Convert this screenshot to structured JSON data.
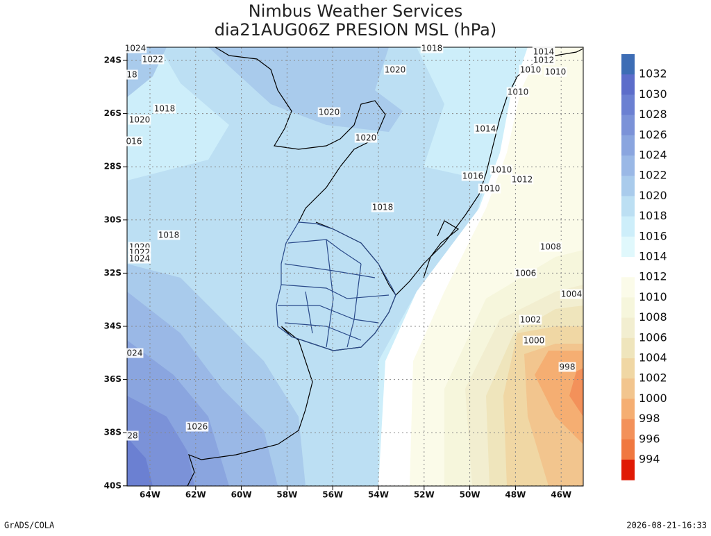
{
  "title": "Nimbus Weather Services",
  "subtitle": "dia21AUG06Z PRESION MSL (hPa)",
  "lat_labels": [
    "24S",
    "26S",
    "28S",
    "30S",
    "32S",
    "34S",
    "36S",
    "38S",
    "40S"
  ],
  "lon_labels": [
    "64W",
    "62W",
    "60W",
    "58W",
    "56W",
    "54W",
    "52W",
    "50W",
    "48W",
    "46W"
  ],
  "colorbar": {
    "labels": [
      "1032",
      "1030",
      "1028",
      "1026",
      "1024",
      "1022",
      "1020",
      "1018",
      "1016",
      "1014",
      "1012",
      "1010",
      "1008",
      "1006",
      "1004",
      "1002",
      "1000",
      "998",
      "996",
      "994"
    ],
    "colors": [
      "#3d6db5",
      "#5c6dca",
      "#6b80d2",
      "#7b92d8",
      "#8aa5df",
      "#9ab8e6",
      "#a9cbec",
      "#bcdff3",
      "#cdeefa",
      "#e0f8fc",
      "#ffffff",
      "#fbfbe9",
      "#f6f6dc",
      "#f2eed0",
      "#efe5bc",
      "#f0d7a4",
      "#f2c58e",
      "#f5ae72",
      "#f3915a",
      "#f07840",
      "#e01a05"
    ]
  },
  "contour_labels": [
    "1024",
    "1022",
    "18",
    "1018",
    "1020",
    "016",
    "1018",
    "1020",
    "1022",
    "1024",
    "024",
    "1026",
    "28",
    "1020",
    "1020",
    "1020",
    "1018",
    "1018",
    "1014",
    "1012",
    "1010",
    "1010",
    "1010",
    "1014",
    "1016",
    "1010",
    "1010",
    "1012",
    "1008",
    "1006",
    "1004",
    "1002",
    "1000",
    "998"
  ],
  "footer_left": "GrADS/COLA",
  "footer_right": "2026-08-21-16:33"
}
